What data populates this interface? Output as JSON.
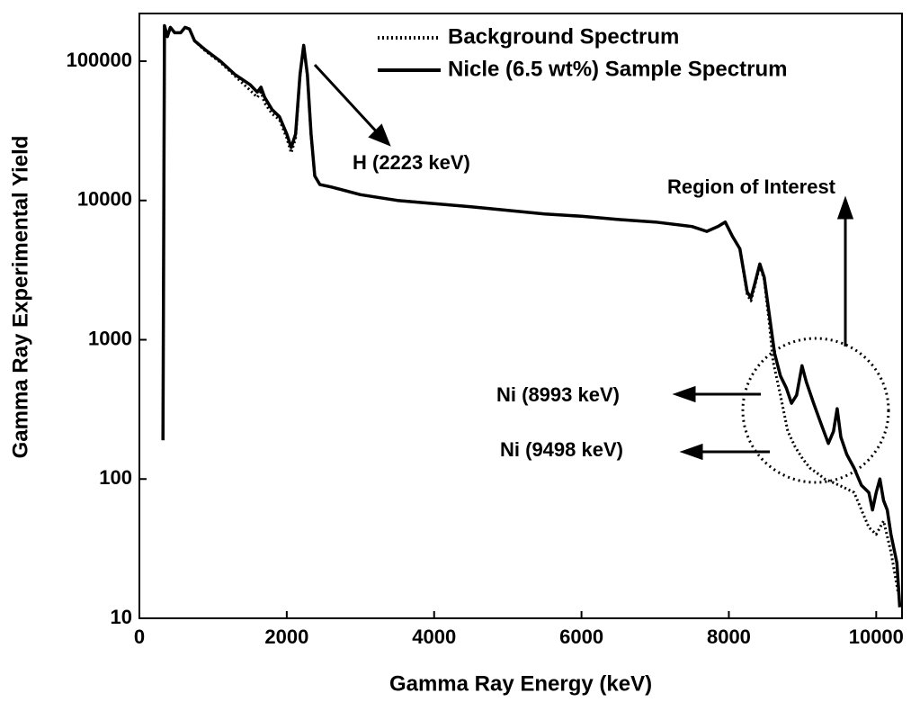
{
  "chart_data": {
    "type": "line",
    "x_label": "Gamma Ray Energy (keV)",
    "y_label": "Gamma Ray Experimental Yield",
    "xlim": [
      0,
      10350
    ],
    "xticks": [
      0,
      2000,
      4000,
      6000,
      8000,
      10000
    ],
    "ylim": [
      10,
      220000
    ],
    "yticks": [
      10,
      100,
      1000,
      10000,
      100000
    ],
    "y_scale": "log",
    "legend": "upper right",
    "annotations": [
      "H (2223 keV)",
      "Region of Interest",
      "Ni (8993 keV)",
      "Ni (9498 keV)"
    ],
    "series": [
      {
        "name": "Background Spectrum",
        "color": "#000000",
        "line_style": "dotted",
        "x": [
          320,
          340,
          380,
          420,
          480,
          560,
          620,
          680,
          750,
          900,
          1100,
          1300,
          1500,
          1600,
          1650,
          1700,
          1800,
          1900,
          2000,
          2060,
          2120,
          2180,
          2230,
          2280,
          2330,
          2380,
          2450,
          2600,
          3000,
          3500,
          4000,
          4500,
          5000,
          5500,
          6000,
          6500,
          7000,
          7500,
          7700,
          7850,
          7950,
          8050,
          8150,
          8250,
          8300,
          8350,
          8420,
          8480,
          8550,
          8600,
          8700,
          8800,
          8900,
          9000,
          9100,
          9200,
          9300,
          9400,
          9500,
          9600,
          9700,
          9800,
          9900,
          10000,
          10100,
          10200,
          10300
        ],
        "values": [
          190,
          180000,
          150000,
          175000,
          160000,
          160000,
          175000,
          170000,
          140000,
          118000,
          98000,
          78000,
          62000,
          55000,
          60000,
          50000,
          42000,
          38000,
          28000,
          22000,
          28000,
          78000,
          128000,
          78000,
          29000,
          15000,
          13000,
          12500,
          11000,
          10000,
          9500,
          9000,
          8500,
          8000,
          7700,
          7300,
          7000,
          6500,
          6000,
          6500,
          7000,
          5500,
          4500,
          2100,
          1900,
          2400,
          3400,
          2700,
          1300,
          700,
          400,
          220,
          170,
          140,
          120,
          110,
          100,
          95,
          90,
          85,
          80,
          60,
          45,
          40,
          50,
          30,
          15
        ]
      },
      {
        "name": "Nicle (6.5 wt%) Sample Spectrum",
        "color": "#000000",
        "line_style": "solid",
        "x": [
          320,
          340,
          380,
          420,
          480,
          560,
          620,
          680,
          750,
          900,
          1100,
          1300,
          1500,
          1600,
          1650,
          1700,
          1800,
          1900,
          2000,
          2060,
          2120,
          2180,
          2230,
          2280,
          2330,
          2380,
          2450,
          2600,
          3000,
          3500,
          4000,
          4500,
          5000,
          5500,
          6000,
          6500,
          7000,
          7500,
          7700,
          7850,
          7950,
          8050,
          8150,
          8250,
          8300,
          8350,
          8420,
          8480,
          8550,
          8620,
          8700,
          8780,
          8850,
          8920,
          8993,
          9050,
          9150,
          9250,
          9350,
          9420,
          9470,
          9520,
          9600,
          9700,
          9800,
          9900,
          9950,
          10000,
          10050,
          10100,
          10150,
          10200,
          10280,
          10320
        ],
        "values": [
          190,
          180000,
          150000,
          175000,
          160000,
          160000,
          175000,
          170000,
          140000,
          120000,
          100000,
          80000,
          68000,
          60000,
          65000,
          55000,
          45000,
          40000,
          30000,
          24000,
          30000,
          80000,
          130000,
          80000,
          30000,
          15000,
          13000,
          12500,
          11000,
          10000,
          9500,
          9000,
          8500,
          8000,
          7700,
          7300,
          7000,
          6500,
          6000,
          6500,
          7000,
          5500,
          4500,
          2200,
          2000,
          2500,
          3500,
          2800,
          1500,
          800,
          550,
          450,
          350,
          400,
          650,
          500,
          350,
          250,
          180,
          220,
          320,
          200,
          150,
          120,
          90,
          80,
          60,
          80,
          100,
          70,
          60,
          40,
          25,
          12
        ]
      }
    ]
  }
}
